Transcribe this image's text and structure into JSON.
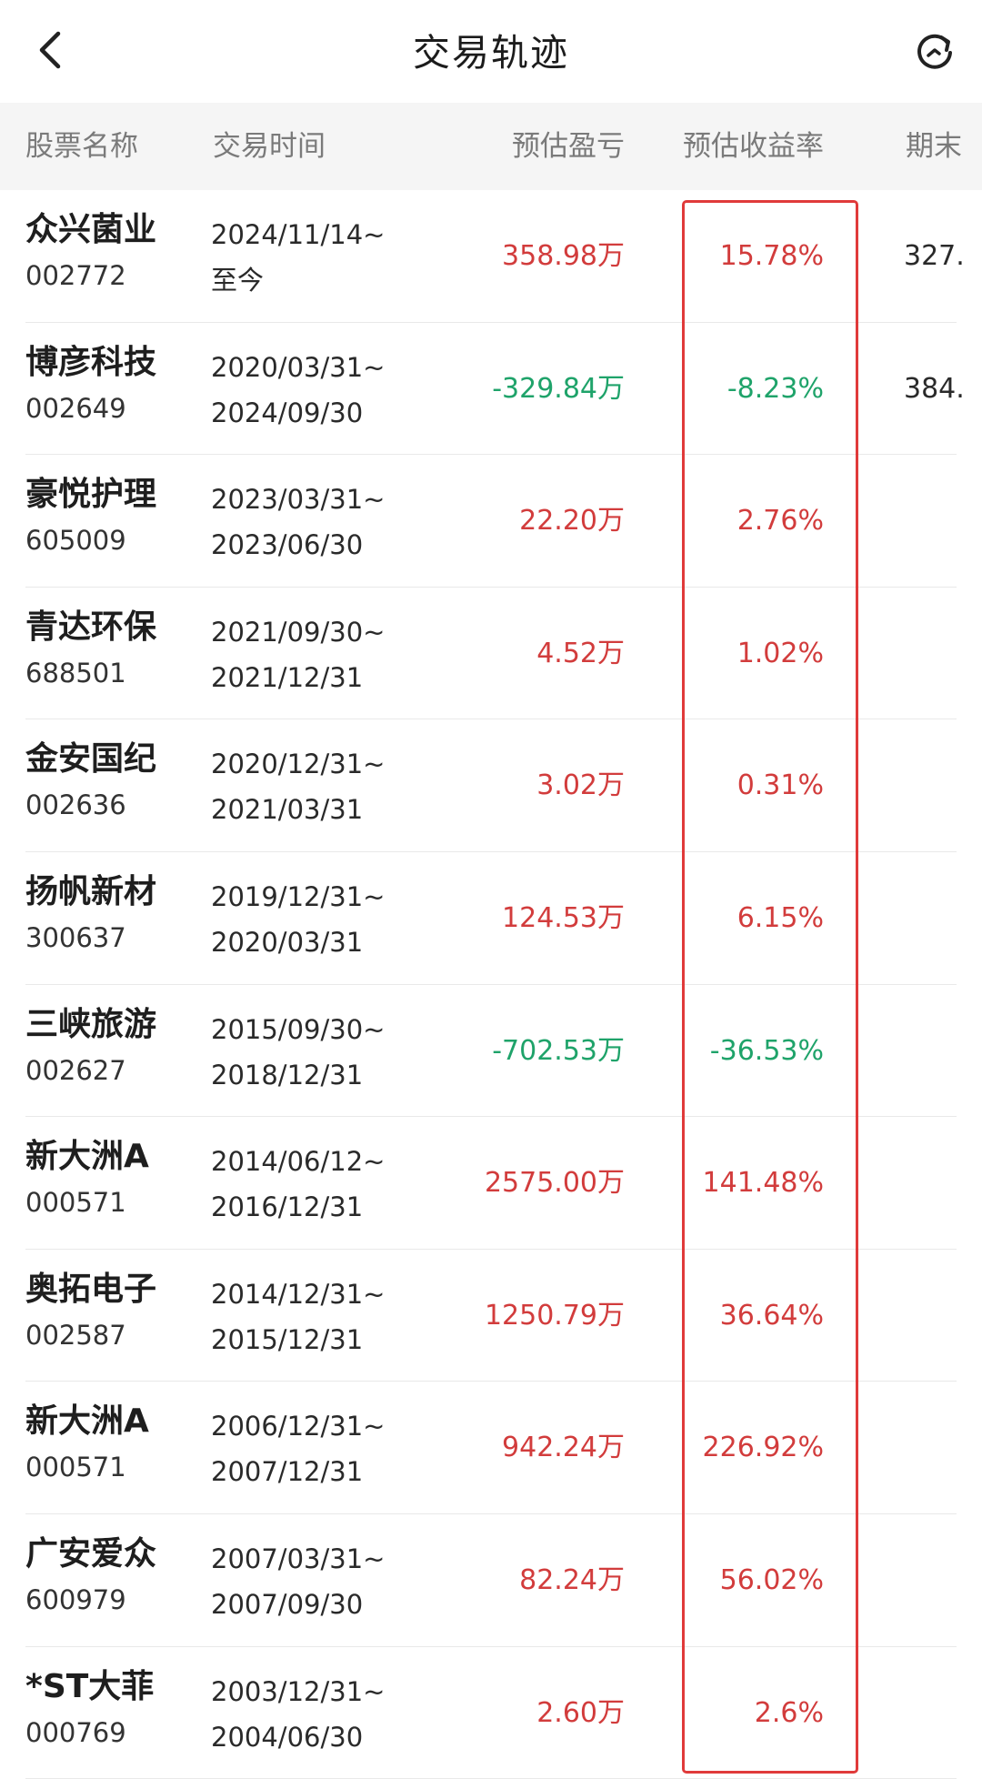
{
  "nav": {
    "title": "交易轨迹",
    "back_icon": "chevron-left-icon",
    "refresh_icon": "refresh-icon"
  },
  "header": {
    "col_name": "股票名称",
    "col_time": "交易时间",
    "col_pnl": "预估盈亏",
    "col_rate": "预估收益率",
    "col_end": "期末"
  },
  "colors": {
    "profit": "#d23c3c",
    "loss": "#1fa36a",
    "highlight_border": "#e03a3a"
  },
  "rows": [
    {
      "name": "众兴菌业",
      "code": "002772",
      "start": "2024/11/14~",
      "end": "至今",
      "pnl": "358.98万",
      "rate": "15.78%",
      "end_value": "327.",
      "positive": true
    },
    {
      "name": "博彦科技",
      "code": "002649",
      "start": "2020/03/31~",
      "end": "2024/09/30",
      "pnl": "-329.84万",
      "rate": "-8.23%",
      "end_value": "384.",
      "positive": false
    },
    {
      "name": "豪悦护理",
      "code": "605009",
      "start": "2023/03/31~",
      "end": "2023/06/30",
      "pnl": "22.20万",
      "rate": "2.76%",
      "end_value": "",
      "positive": true
    },
    {
      "name": "青达环保",
      "code": "688501",
      "start": "2021/09/30~",
      "end": "2021/12/31",
      "pnl": "4.52万",
      "rate": "1.02%",
      "end_value": "",
      "positive": true
    },
    {
      "name": "金安国纪",
      "code": "002636",
      "start": "2020/12/31~",
      "end": "2021/03/31",
      "pnl": "3.02万",
      "rate": "0.31%",
      "end_value": "",
      "positive": true
    },
    {
      "name": "扬帆新材",
      "code": "300637",
      "start": "2019/12/31~",
      "end": "2020/03/31",
      "pnl": "124.53万",
      "rate": "6.15%",
      "end_value": "",
      "positive": true
    },
    {
      "name": "三峡旅游",
      "code": "002627",
      "start": "2015/09/30~",
      "end": "2018/12/31",
      "pnl": "-702.53万",
      "rate": "-36.53%",
      "end_value": "",
      "positive": false
    },
    {
      "name": "新大洲A",
      "code": "000571",
      "start": "2014/06/12~",
      "end": "2016/12/31",
      "pnl": "2575.00万",
      "rate": "141.48%",
      "end_value": "",
      "positive": true
    },
    {
      "name": "奥拓电子",
      "code": "002587",
      "start": "2014/12/31~",
      "end": "2015/12/31",
      "pnl": "1250.79万",
      "rate": "36.64%",
      "end_value": "",
      "positive": true
    },
    {
      "name": "新大洲A",
      "code": "000571",
      "start": "2006/12/31~",
      "end": "2007/12/31",
      "pnl": "942.24万",
      "rate": "226.92%",
      "end_value": "",
      "positive": true
    },
    {
      "name": "广安爱众",
      "code": "600979",
      "start": "2007/03/31~",
      "end": "2007/09/30",
      "pnl": "82.24万",
      "rate": "56.02%",
      "end_value": "",
      "positive": true
    },
    {
      "name": "*ST大菲",
      "code": "000769",
      "start": "2003/12/31~",
      "end": "2004/06/30",
      "pnl": "2.60万",
      "rate": "2.6%",
      "end_value": "",
      "positive": true
    }
  ]
}
